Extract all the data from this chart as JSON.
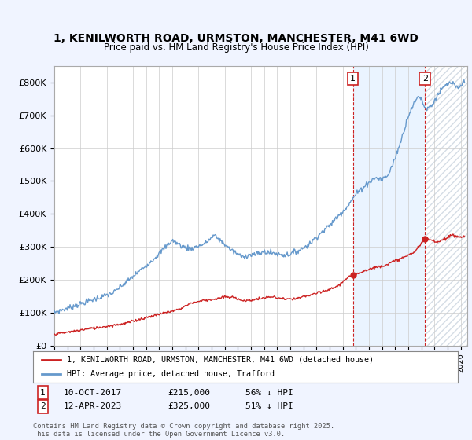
{
  "title": "1, KENILWORTH ROAD, URMSTON, MANCHESTER, M41 6WD",
  "subtitle": "Price paid vs. HM Land Registry's House Price Index (HPI)",
  "hpi_color": "#6699cc",
  "sale_color": "#cc2222",
  "background_color": "#f0f4ff",
  "plot_bg_color": "#ffffff",
  "grid_color": "#cccccc",
  "ylim": [
    0,
    850000
  ],
  "xlim_start": 1995.0,
  "xlim_end": 2026.5,
  "transaction1_x": 2017.78,
  "transaction1_y": 215000,
  "transaction2_x": 2023.28,
  "transaction2_y": 325000,
  "transaction1_date": "10-OCT-2017",
  "transaction1_price": "£215,000",
  "transaction1_pct": "56% ↓ HPI",
  "transaction2_date": "12-APR-2023",
  "transaction2_price": "£325,000",
  "transaction2_pct": "51% ↓ HPI",
  "legend_label_red": "1, KENILWORTH ROAD, URMSTON, MANCHESTER, M41 6WD (detached house)",
  "legend_label_blue": "HPI: Average price, detached house, Trafford",
  "footer": "Contains HM Land Registry data © Crown copyright and database right 2025.\nThis data is licensed under the Open Government Licence v3.0.",
  "yticks": [
    0,
    100000,
    200000,
    300000,
    400000,
    500000,
    600000,
    700000,
    800000
  ],
  "ytick_labels": [
    "£0",
    "£100K",
    "£200K",
    "£300K",
    "£400K",
    "£500K",
    "£600K",
    "£700K",
    "£800K"
  ]
}
